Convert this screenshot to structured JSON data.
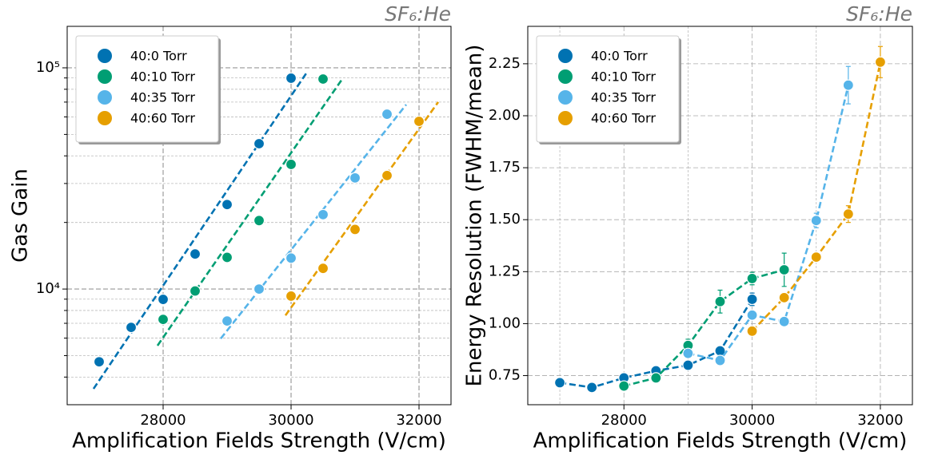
{
  "chart_data": [
    {
      "type": "scatter",
      "title": "SF₆:He",
      "x_label": "Amplification Fields Strength (V/cm)",
      "y_label": "Gas Gain",
      "log_y": true,
      "grid": true,
      "legend": "upper left",
      "xlim": [
        26500,
        32500
      ],
      "ylim": [
        3000,
        154000
      ],
      "xticks": [
        28000,
        30000,
        32000
      ],
      "yticks": [
        {
          "value": 10000,
          "label": "10⁴"
        },
        {
          "value": 100000,
          "label": "10⁵"
        }
      ],
      "yticks_minor": [
        4000,
        5000,
        6000,
        7000,
        8000,
        9000,
        20000,
        30000,
        40000,
        50000,
        60000,
        70000,
        80000,
        90000
      ],
      "series": [
        {
          "name": "40:0 Torr",
          "color": "#0072b2",
          "x": [
            27000,
            27500,
            28000,
            28500,
            29000,
            29500,
            30000
          ],
          "values": [
            4690,
            6710,
            8980,
            14400,
            24100,
            45400,
            89800
          ],
          "fit_x": [
            26912,
            30262
          ],
          "fit_values": [
            3540,
            96800
          ]
        },
        {
          "name": "40:10 Torr",
          "color": "#009e73",
          "x": [
            28000,
            28500,
            29000,
            29500,
            30000,
            30500
          ],
          "values": [
            7290,
            9800,
            13900,
            20400,
            36600,
            89000
          ],
          "fit_x": [
            27912,
            30800
          ],
          "fit_values": [
            5550,
            89000
          ]
        },
        {
          "name": "40:35 Torr",
          "color": "#56b4e9",
          "x": [
            29000,
            29500,
            30000,
            30500,
            31000,
            31500
          ],
          "values": [
            7170,
            10000,
            13800,
            21700,
            31800,
            61700
          ],
          "fit_x": [
            28900,
            31800
          ],
          "fit_values": [
            5970,
            68200
          ]
        },
        {
          "name": "40:60 Torr",
          "color": "#e69f00",
          "x": [
            30000,
            30500,
            31000,
            31500,
            32000
          ],
          "values": [
            9290,
            12400,
            18600,
            32600,
            57300
          ],
          "fit_x": [
            29912,
            32300
          ],
          "fit_values": [
            7600,
            70000
          ]
        }
      ]
    },
    {
      "type": "line",
      "title": "SF₆:He",
      "x_label": "Amplification Fields Strength (V/cm)",
      "y_label": "Energy Resolution (FWHM/mean)",
      "log_y": false,
      "grid": true,
      "legend": "upper left",
      "xlim": [
        26500,
        32500
      ],
      "ylim": [
        0.61,
        2.43
      ],
      "xticks": [
        28000,
        30000,
        32000
      ],
      "xticks_minor": [
        27000,
        29000,
        31000
      ],
      "yticks": [
        0.75,
        {
          "value": 1,
          "label": "1.00"
        },
        1.25,
        {
          "value": 1.5,
          "label": "1.50"
        },
        1.75,
        {
          "value": 2,
          "label": "2.00"
        },
        2.25
      ],
      "series": [
        {
          "name": "40:0 Torr",
          "color": "#0072b2",
          "x": [
            27000,
            27500,
            28000,
            28500,
            29000,
            29500,
            30000
          ],
          "values": [
            0.716,
            0.693,
            0.739,
            0.773,
            0.8,
            0.869,
            1.117
          ],
          "errors": [
            0.01,
            0.01,
            0.01,
            0.01,
            0.01,
            0.015,
            0.03
          ]
        },
        {
          "name": "40:10 Torr",
          "color": "#009e73",
          "x": [
            28000,
            28500,
            29000,
            29500,
            30000,
            30500
          ],
          "values": [
            0.7,
            0.739,
            0.895,
            1.106,
            1.217,
            1.259
          ],
          "errors": [
            0.01,
            0.01,
            0.03,
            0.055,
            0.03,
            0.08
          ]
        },
        {
          "name": "40:35 Torr",
          "color": "#56b4e9",
          "x": [
            29000,
            29500,
            30000,
            30500,
            31000,
            31500
          ],
          "values": [
            0.857,
            0.823,
            1.041,
            1.01,
            1.496,
            2.147
          ],
          "errors": [
            0.01,
            0.01,
            0.02,
            0.015,
            0.035,
            0.09
          ]
        },
        {
          "name": "40:60 Torr",
          "color": "#e69f00",
          "x": [
            30000,
            30500,
            31000,
            31500,
            32000
          ],
          "values": [
            0.964,
            1.125,
            1.32,
            1.527,
            2.258
          ],
          "errors": [
            0.01,
            0.02,
            0.02,
            0.04,
            0.075
          ]
        }
      ]
    }
  ]
}
